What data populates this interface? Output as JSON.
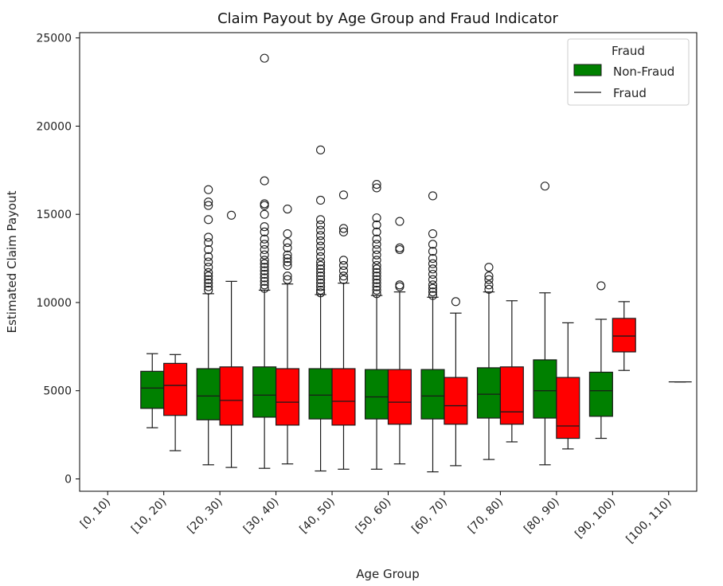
{
  "chart_data": {
    "type": "box",
    "title": "Claim Payout by Age Group and Fraud Indicator",
    "xlabel": "Age Group",
    "ylabel": "Estimated Claim Payout",
    "ylim": [
      -700,
      25300
    ],
    "yticks": [
      0,
      5000,
      10000,
      15000,
      20000,
      25000
    ],
    "categories": [
      "[0, 10)",
      "[10, 20)",
      "[20, 30)",
      "[30, 40)",
      "[40, 50)",
      "[50, 60)",
      "[60, 70)",
      "[70, 80)",
      "[80, 90)",
      "[90, 100)",
      "[100, 110)"
    ],
    "legend": {
      "title": "Fraud",
      "placement": "upper right",
      "entries": [
        "Non-Fraud",
        "Fraud"
      ]
    },
    "colors": {
      "Non-Fraud": "#008000",
      "Fraud": "#ff0000"
    },
    "series": [
      {
        "name": "Non-Fraud",
        "boxes": [
          null,
          {
            "q1": 4000,
            "median": 5150,
            "q3": 6100,
            "whisker_low": 2900,
            "whisker_high": 7100,
            "outliers": []
          },
          {
            "q1": 3350,
            "median": 4700,
            "q3": 6250,
            "whisker_low": 800,
            "whisker_high": 10500,
            "outliers": [
              10700,
              10900,
              11100,
              11300,
              11500,
              11700,
              12000,
              12300,
              12600,
              13000,
              13400,
              13700,
              14700,
              15500,
              15700,
              16400
            ]
          },
          {
            "q1": 3500,
            "median": 4750,
            "q3": 6350,
            "whisker_low": 600,
            "whisker_high": 10700,
            "outliers": [
              10800,
              11000,
              11200,
              11400,
              11600,
              11800,
              12000,
              12200,
              12400,
              12700,
              13000,
              13300,
              13600,
              14000,
              14300,
              15000,
              15500,
              15600,
              16900,
              23850
            ]
          },
          {
            "q1": 3400,
            "median": 4750,
            "q3": 6250,
            "whisker_low": 450,
            "whisker_high": 10450,
            "outliers": [
              10550,
              10700,
              10900,
              11100,
              11300,
              11500,
              11700,
              11900,
              12100,
              12300,
              12600,
              12900,
              13200,
              13500,
              13800,
              14100,
              14400,
              14700,
              15800,
              18650
            ]
          },
          {
            "q1": 3400,
            "median": 4650,
            "q3": 6200,
            "whisker_low": 550,
            "whisker_high": 10400,
            "outliers": [
              10500,
              10700,
              10900,
              11100,
              11300,
              11500,
              11700,
              11900,
              12100,
              12400,
              12700,
              13000,
              13300,
              13600,
              14000,
              14400,
              14800,
              16500,
              16700
            ]
          },
          {
            "q1": 3400,
            "median": 4700,
            "q3": 6200,
            "whisker_low": 400,
            "whisker_high": 10300,
            "outliers": [
              10400,
              10600,
              10800,
              11000,
              11300,
              11600,
              11900,
              12200,
              12500,
              12900,
              13300,
              13900,
              16050
            ]
          },
          {
            "q1": 3450,
            "median": 4800,
            "q3": 6300,
            "whisker_low": 1100,
            "whisker_high": 10600,
            "outliers": [
              10750,
              11000,
              11300,
              11500,
              12000
            ]
          },
          {
            "q1": 3450,
            "median": 5000,
            "q3": 6750,
            "whisker_low": 800,
            "whisker_high": 10550,
            "outliers": [
              16600
            ]
          },
          {
            "q1": 3550,
            "median": 5000,
            "q3": 6050,
            "whisker_low": 2300,
            "whisker_high": 9050,
            "outliers": [
              10950
            ]
          },
          null
        ]
      },
      {
        "name": "Fraud",
        "boxes": [
          null,
          {
            "q1": 3600,
            "median": 5300,
            "q3": 6550,
            "whisker_low": 1600,
            "whisker_high": 7050,
            "outliers": []
          },
          {
            "q1": 3050,
            "median": 4450,
            "q3": 6350,
            "whisker_low": 650,
            "whisker_high": 11200,
            "outliers": [
              14950
            ]
          },
          {
            "q1": 3050,
            "median": 4350,
            "q3": 6250,
            "whisker_low": 850,
            "whisker_high": 11050,
            "outliers": [
              11300,
              11500,
              12100,
              12300,
              12500,
              12700,
              13100,
              13400,
              13900,
              15300
            ]
          },
          {
            "q1": 3050,
            "median": 4400,
            "q3": 6250,
            "whisker_low": 550,
            "whisker_high": 11100,
            "outliers": [
              11300,
              11500,
              11800,
              12100,
              12400,
              14000,
              14200,
              16100
            ]
          },
          {
            "q1": 3100,
            "median": 4350,
            "q3": 6200,
            "whisker_low": 850,
            "whisker_high": 10600,
            "outliers": [
              10900,
              11000,
              13000,
              13100,
              14600
            ]
          },
          {
            "q1": 3100,
            "median": 4150,
            "q3": 5750,
            "whisker_low": 750,
            "whisker_high": 9400,
            "outliers": [
              10050
            ]
          },
          {
            "q1": 3100,
            "median": 3800,
            "q3": 6350,
            "whisker_low": 2100,
            "whisker_high": 10100,
            "outliers": []
          },
          {
            "q1": 2300,
            "median": 3000,
            "q3": 5750,
            "whisker_low": 1700,
            "whisker_high": 8850,
            "outliers": []
          },
          {
            "q1": 7200,
            "median": 8100,
            "q3": 9100,
            "whisker_low": 6150,
            "whisker_high": 10050,
            "outliers": []
          },
          {
            "q1": 5500,
            "median": 5500,
            "q3": 5500,
            "whisker_low": 5500,
            "whisker_high": 5500,
            "outliers": []
          }
        ]
      }
    ]
  }
}
